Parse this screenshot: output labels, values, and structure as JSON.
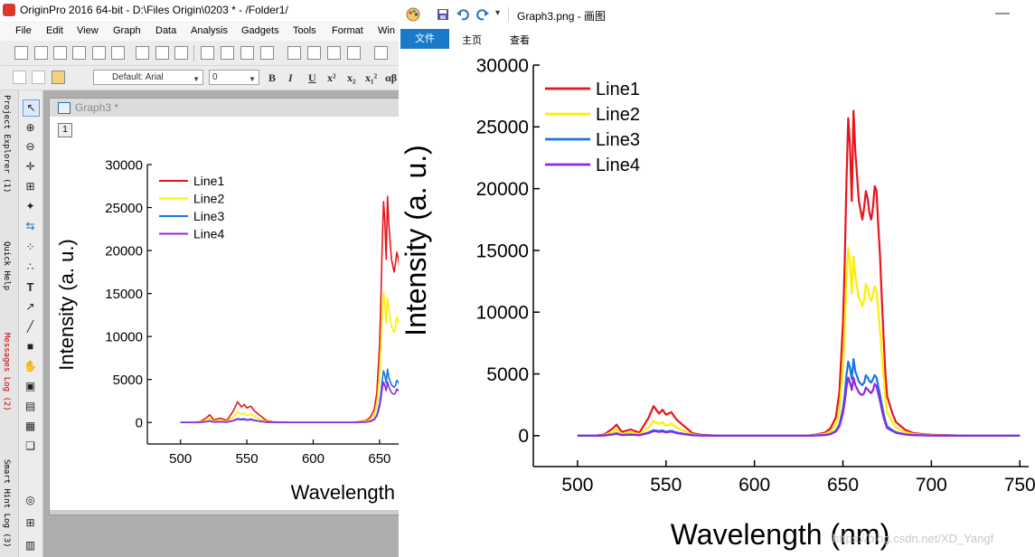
{
  "origin": {
    "title": "OriginPro 2016 64-bit - D:\\Files Origin\\0203 * - /Folder1/",
    "menu": [
      "File",
      "Edit",
      "View",
      "Graph",
      "Data",
      "Analysis",
      "Gadgets",
      "Tools",
      "Format",
      "Win"
    ],
    "font_combo": "Default: Arial",
    "size_combo": "0",
    "format_buttons": [
      "B",
      "I",
      "U",
      "x²",
      "x₂",
      "x₁²",
      "αβ"
    ],
    "side_tabs": [
      "Project Explorer (1)",
      "Quick Help",
      "Messages Log (2)",
      "Smart Hint Log (3)"
    ],
    "side_tab_colors": [
      "#000000",
      "#000000",
      "#c00000",
      "#000000"
    ],
    "graph_window": {
      "title": "Graph3 *",
      "layer_label": "1"
    }
  },
  "paint": {
    "title": "Graph3.png - 画图",
    "ribbon_tabs": [
      "文件",
      "主页",
      "查看"
    ],
    "watermark": "https://blog.csdn.net/XD_Yangf"
  },
  "chart_data": {
    "type": "line",
    "xlabel": "Wavelength (nm)",
    "ylabel": "Intensity (a. u.)",
    "xlim": [
      475,
      755
    ],
    "ylim": [
      -2500,
      30000
    ],
    "xticks": [
      500,
      550,
      600,
      650,
      700,
      750
    ],
    "yticks": [
      0,
      5000,
      10000,
      15000,
      20000,
      25000,
      30000
    ],
    "legend_position": "top-left",
    "x": [
      500,
      510,
      515,
      520,
      522,
      525,
      530,
      535,
      540,
      543,
      546,
      548,
      550,
      553,
      556,
      560,
      565,
      570,
      580,
      600,
      620,
      630,
      635,
      640,
      643,
      646,
      648,
      650,
      651,
      652,
      653,
      654,
      655,
      656,
      657,
      658,
      659,
      660,
      661,
      662,
      663,
      664,
      665,
      666,
      667,
      668,
      669,
      670,
      671,
      672,
      673,
      674,
      675,
      678,
      680,
      685,
      690,
      700,
      720,
      750
    ],
    "series": [
      {
        "name": "Line1",
        "color": "#e8141c",
        "values": [
          0,
          0,
          100,
          600,
          900,
          300,
          500,
          250,
          1400,
          2400,
          1800,
          2100,
          1700,
          1900,
          1300,
          800,
          200,
          80,
          0,
          0,
          0,
          0,
          100,
          250,
          600,
          1500,
          3500,
          9000,
          14000,
          20500,
          25700,
          23500,
          19000,
          26300,
          23000,
          21000,
          19000,
          18200,
          17500,
          18500,
          19800,
          19200,
          18000,
          17500,
          18500,
          20200,
          19800,
          17000,
          14500,
          11000,
          8000,
          5000,
          3200,
          1800,
          1100,
          500,
          200,
          80,
          0,
          0
        ]
      },
      {
        "name": "Line2",
        "color": "#ffee00",
        "values": [
          0,
          0,
          50,
          300,
          500,
          150,
          250,
          130,
          650,
          1200,
          950,
          1100,
          800,
          1000,
          650,
          400,
          100,
          40,
          0,
          0,
          0,
          0,
          60,
          150,
          350,
          900,
          2000,
          5500,
          8500,
          12500,
          15200,
          14000,
          11500,
          14500,
          13000,
          12000,
          11200,
          10800,
          10500,
          11000,
          12300,
          11900,
          11200,
          10900,
          11500,
          12100,
          11700,
          10200,
          8500,
          6500,
          4800,
          3000,
          1900,
          1100,
          650,
          300,
          120,
          50,
          0,
          0
        ]
      },
      {
        "name": "Line3",
        "color": "#1874e8",
        "values": [
          0,
          0,
          20,
          120,
          200,
          60,
          100,
          50,
          250,
          450,
          380,
          430,
          320,
          400,
          260,
          160,
          40,
          20,
          0,
          0,
          0,
          0,
          25,
          60,
          150,
          400,
          900,
          2200,
          3300,
          4900,
          6000,
          5500,
          4600,
          6200,
          5200,
          4800,
          4400,
          4200,
          4100,
          4300,
          4900,
          4700,
          4400,
          4300,
          4600,
          4900,
          4700,
          4000,
          3300,
          2500,
          1800,
          1200,
          750,
          450,
          280,
          120,
          50,
          20,
          0,
          0
        ]
      },
      {
        "name": "Line4",
        "color": "#8a2be2",
        "values": [
          0,
          0,
          15,
          100,
          160,
          50,
          80,
          40,
          200,
          380,
          310,
          350,
          270,
          330,
          210,
          130,
          30,
          15,
          0,
          0,
          0,
          0,
          20,
          50,
          120,
          330,
          750,
          1800,
          2700,
          3900,
          4700,
          4300,
          3700,
          4700,
          4100,
          3800,
          3500,
          3350,
          3300,
          3450,
          3900,
          3750,
          3550,
          3450,
          3700,
          4200,
          4000,
          3400,
          2800,
          2100,
          1500,
          1000,
          620,
          380,
          230,
          100,
          40,
          15,
          0,
          0
        ]
      }
    ]
  }
}
